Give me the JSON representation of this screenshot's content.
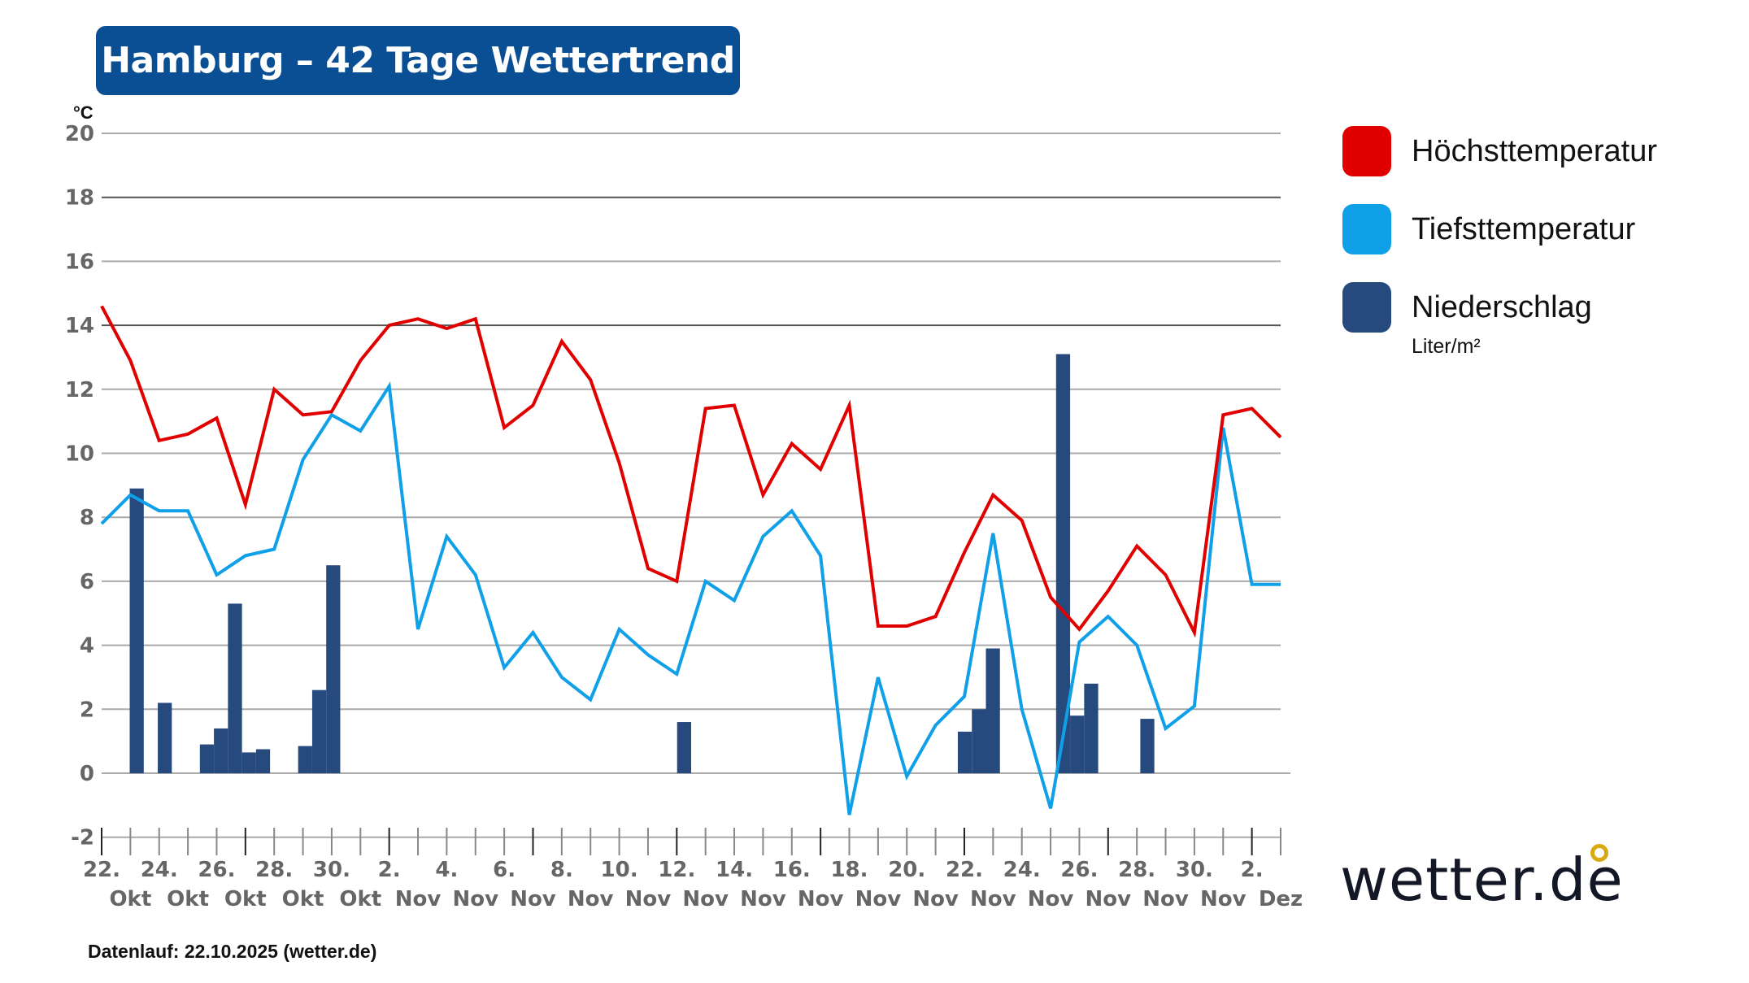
{
  "title": "Hamburg – 42 Tage Wettertrend",
  "footer": "Datenlauf: 22.10.2025 (wetter.de)",
  "logo_text": "wetter.de",
  "colors": {
    "max": "#e00000",
    "min": "#0fa0e8",
    "precip": "#264a7d",
    "title_bg": "#0a4f94",
    "logo_dot": "#d8aa12"
  },
  "legend": {
    "items": [
      {
        "label": "Höchsttemperatur",
        "color": "#e00000"
      },
      {
        "label": "Tiefsttemperatur",
        "color": "#0fa0e8"
      },
      {
        "label": "Niederschlag",
        "color": "#264a7d"
      }
    ],
    "precip_unit": "Liter/m²"
  },
  "chart_data": {
    "type": "line",
    "ylabel": "°C",
    "ylim": [
      -2,
      20
    ],
    "yticks": [
      20,
      18,
      16,
      14,
      12,
      10,
      8,
      6,
      4,
      2,
      0,
      -2
    ],
    "grid": true,
    "legend_position": "right",
    "x_tick_labels": [
      [
        "22.",
        "Okt"
      ],
      [
        "24.",
        "Okt"
      ],
      [
        "26.",
        "Okt"
      ],
      [
        "28.",
        "Okt"
      ],
      [
        "30.",
        "Okt"
      ],
      [
        "2.",
        "Nov"
      ],
      [
        "4.",
        "Nov"
      ],
      [
        "6.",
        "Nov"
      ],
      [
        "8.",
        "Nov"
      ],
      [
        "10.",
        "Nov"
      ],
      [
        "12.",
        "Nov"
      ],
      [
        "14.",
        "Nov"
      ],
      [
        "16.",
        "Nov"
      ],
      [
        "18.",
        "Nov"
      ],
      [
        "20.",
        "Nov"
      ],
      [
        "22.",
        "Nov"
      ],
      [
        "24.",
        "Nov"
      ],
      [
        "26.",
        "Nov"
      ],
      [
        "28.",
        "Nov"
      ],
      [
        "30.",
        "Nov"
      ],
      [
        "2.",
        "Dez"
      ]
    ],
    "series": [
      {
        "name": "Höchsttemperatur",
        "values": [
          14.6,
          12.9,
          10.4,
          10.6,
          11.1,
          8.4,
          12.0,
          11.2,
          11.3,
          12.9,
          14.0,
          14.2,
          13.9,
          14.2,
          10.8,
          11.5,
          13.5,
          12.3,
          9.7,
          6.4,
          6.0,
          11.4,
          11.5,
          8.7,
          10.3,
          9.5,
          11.5,
          4.6,
          4.6,
          4.9,
          6.9,
          8.7,
          7.9,
          5.5,
          4.5,
          5.7,
          7.1,
          6.2,
          4.4,
          11.2,
          11.4,
          10.5
        ]
      },
      {
        "name": "Tiefsttemperatur",
        "values": [
          7.8,
          8.7,
          8.2,
          8.2,
          6.2,
          6.8,
          7.0,
          9.8,
          11.2,
          10.7,
          12.1,
          4.5,
          7.4,
          6.2,
          3.3,
          4.4,
          3.0,
          2.3,
          4.5,
          3.7,
          3.1,
          6.0,
          5.4,
          7.4,
          8.2,
          6.8,
          -1.3,
          3.0,
          -0.1,
          1.5,
          2.4,
          7.5,
          2.0,
          -1.1,
          4.1,
          4.9,
          4.0,
          1.4,
          2.1,
          10.8,
          5.9,
          5.9
        ]
      }
    ],
    "precipitation": {
      "name": "Niederschlag",
      "unit": "Liter/m²",
      "half_day_values": [
        0,
        0,
        8.9,
        0,
        2.2,
        0,
        0,
        0.9,
        1.4,
        5.3,
        0.65,
        0.75,
        0,
        0,
        0.85,
        2.6,
        6.5,
        0,
        0,
        0,
        0,
        0,
        0,
        0,
        0,
        0,
        0,
        0,
        0,
        0,
        0,
        0,
        0,
        0,
        0,
        0,
        0,
        0,
        0,
        0,
        0,
        1.6,
        0,
        0,
        0,
        0,
        0,
        0,
        0,
        0,
        0,
        0,
        0,
        0,
        0,
        0,
        0,
        0,
        0,
        0,
        0,
        1.3,
        2.0,
        3.9,
        0,
        0,
        0,
        0,
        13.1,
        1.8,
        2.8,
        0,
        0,
        0,
        1.7,
        0,
        0,
        0,
        0,
        0,
        0,
        0,
        0,
        0
      ]
    }
  }
}
